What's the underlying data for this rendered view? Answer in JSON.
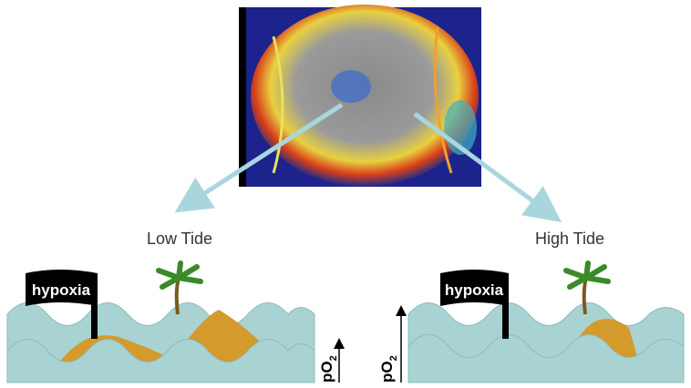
{
  "panels": [
    {
      "label": "Low Tide",
      "flag": "hypoxia",
      "axis": {
        "text": "pO",
        "subscript": "2"
      }
    },
    {
      "label": "High Tide",
      "flag": "hypoxia",
      "axis": {
        "text": "pO",
        "subscript": "2"
      }
    }
  ]
}
